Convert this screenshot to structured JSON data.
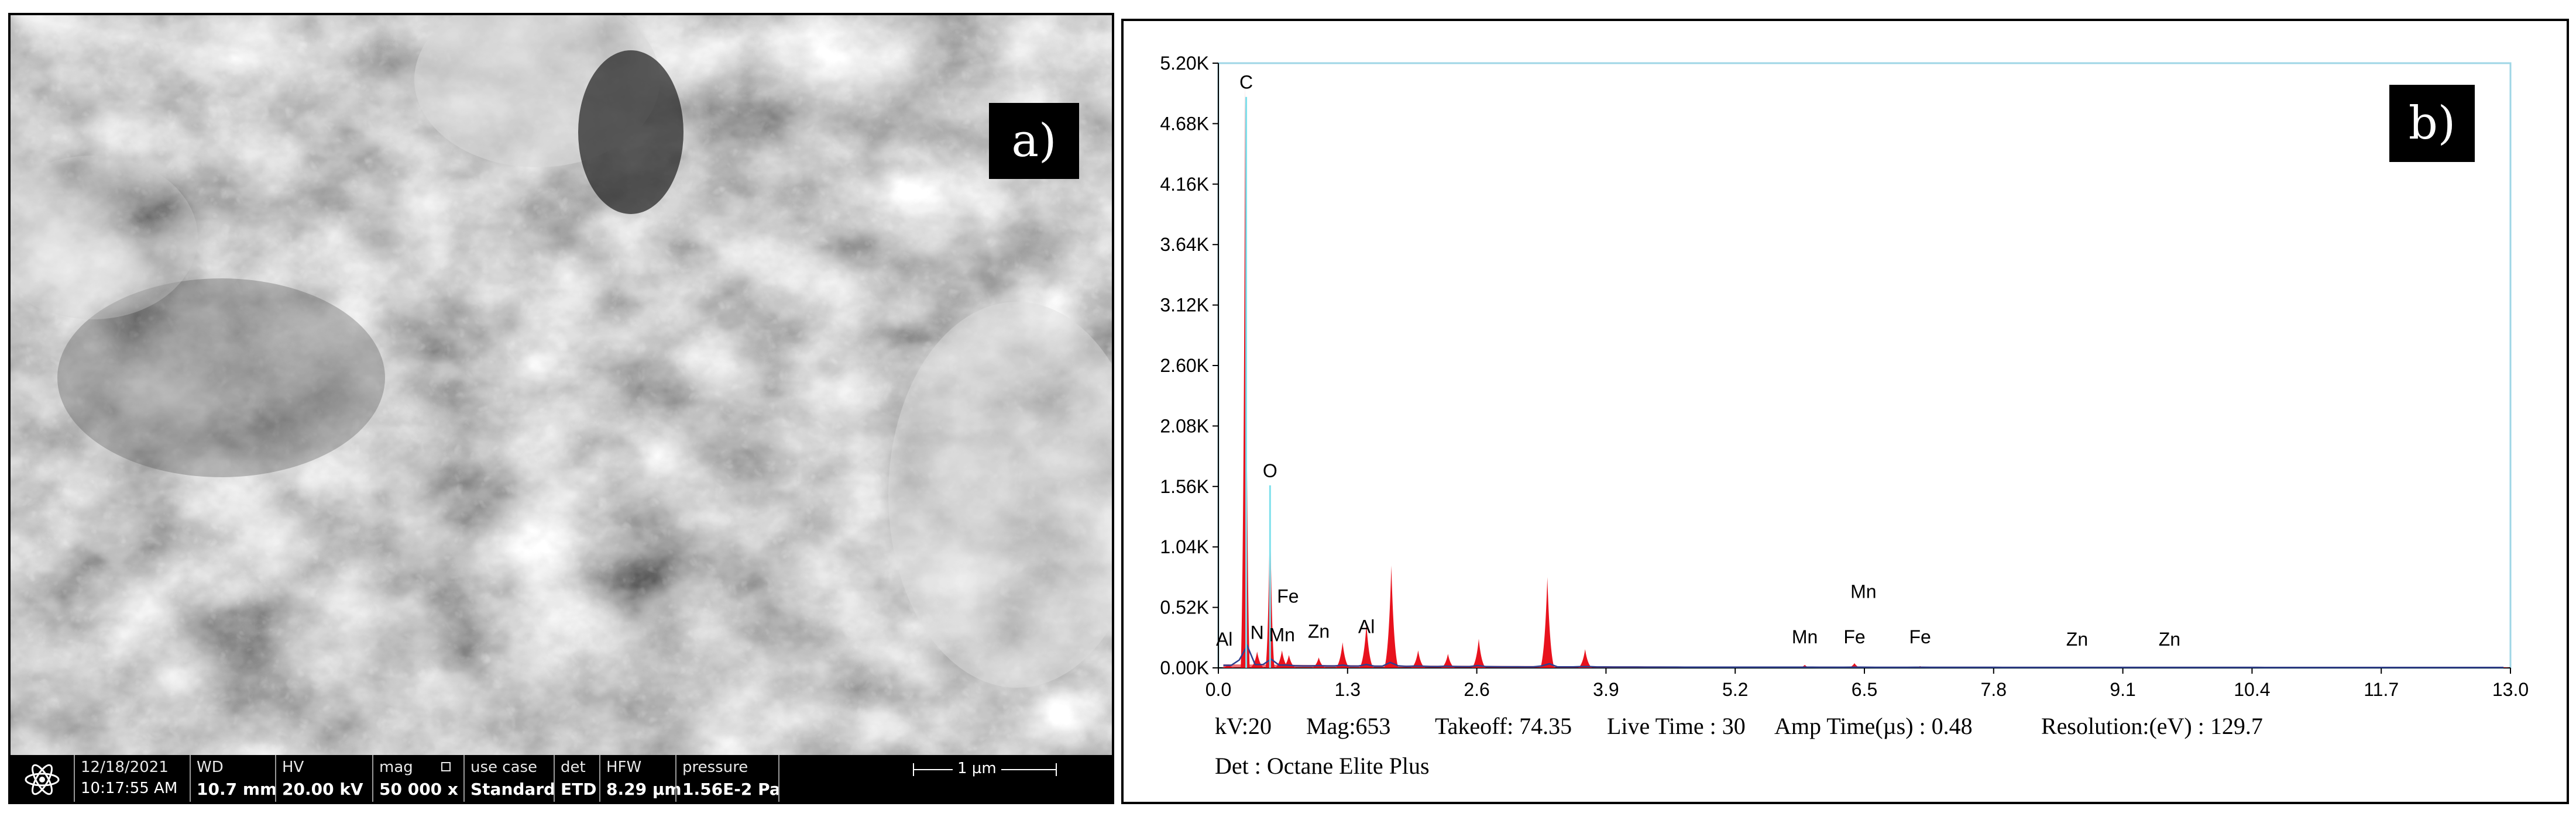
{
  "panels": {
    "a": {
      "label": "a)",
      "databar": {
        "date": "12/18/2021",
        "time": "10:17:55 AM",
        "wd_label": "WD",
        "wd_value": "10.7 mm",
        "hv_label": "HV",
        "hv_value": "20.00 kV",
        "mag_label": "mag",
        "mag_value": "50 000 x",
        "usecase_label": "use case",
        "usecase_value": "Standard",
        "det_label": "det",
        "det_value": "ETD",
        "hfw_label": "HFW",
        "hfw_value": "8.29 µm",
        "pressure_label": "pressure",
        "pressure_value": "1.56E-2 Pa",
        "scalebar": "1 µm"
      }
    },
    "b": {
      "label": "b)",
      "info": {
        "kv": "kV:20",
        "mag": "Mag:653",
        "takeoff": "Takeoff: 74.35",
        "livetime": "Live Time : 30",
        "amptime": "Amp Time(µs) : 0.48",
        "resolution": "Resolution:(eV) : 129.7",
        "detector": "Det : Octane Elite Plus"
      }
    }
  },
  "chart_data": {
    "type": "area",
    "title": "",
    "xlabel": "",
    "ylabel": "",
    "xlim": [
      0.0,
      13.0
    ],
    "ylim": [
      0,
      5200
    ],
    "x_tick_labels": [
      "0.0",
      "1.3",
      "2.6",
      "3.9",
      "5.2",
      "6.5",
      "7.8",
      "9.1",
      "10.4",
      "11.7",
      "13.0"
    ],
    "y_tick_labels": [
      "0.00K",
      "0.52K",
      "1.04K",
      "1.56K",
      "2.08K",
      "2.60K",
      "3.12K",
      "3.64K",
      "4.16K",
      "4.68K",
      "5.20K"
    ],
    "grid": false,
    "legend": "none",
    "colors": {
      "spectrum_fill": "#e8121d",
      "overlay": "#2f3f8f",
      "marker_line": "#7fe0ec",
      "frame": "#9fd6e6"
    },
    "spectrum_peaks": [
      {
        "x": 0.1,
        "y": 30
      },
      {
        "x": 0.27,
        "y": 5000
      },
      {
        "x": 0.39,
        "y": 140
      },
      {
        "x": 0.52,
        "y": 1480
      },
      {
        "x": 0.64,
        "y": 150
      },
      {
        "x": 0.71,
        "y": 110
      },
      {
        "x": 1.01,
        "y": 90
      },
      {
        "x": 1.25,
        "y": 220
      },
      {
        "x": 1.49,
        "y": 380
      },
      {
        "x": 1.74,
        "y": 880
      },
      {
        "x": 2.01,
        "y": 150
      },
      {
        "x": 2.31,
        "y": 120
      },
      {
        "x": 2.62,
        "y": 250
      },
      {
        "x": 3.31,
        "y": 780
      },
      {
        "x": 3.69,
        "y": 160
      },
      {
        "x": 5.9,
        "y": 25
      },
      {
        "x": 6.4,
        "y": 40
      },
      {
        "x": 7.06,
        "y": 15
      }
    ],
    "element_markers": [
      {
        "label": "C",
        "x": 0.28,
        "y": 4980
      },
      {
        "label": "O",
        "x": 0.52,
        "y": 1640
      },
      {
        "label": "N",
        "x": 0.39,
        "y": 250
      },
      {
        "label": "Fe",
        "x": 0.7,
        "y": 560
      },
      {
        "label": "Mn",
        "x": 0.64,
        "y": 230
      },
      {
        "label": "Zn",
        "x": 1.01,
        "y": 260
      },
      {
        "label": "Al",
        "x": 1.49,
        "y": 300
      },
      {
        "label": "Al",
        "x": 0.06,
        "y": 190
      },
      {
        "label": "Mn",
        "x": 5.9,
        "y": 210
      },
      {
        "label": "Fe",
        "x": 6.4,
        "y": 210
      },
      {
        "label": "Mn",
        "x": 6.49,
        "y": 600
      },
      {
        "label": "Fe",
        "x": 7.06,
        "y": 210
      },
      {
        "label": "Zn",
        "x": 8.64,
        "y": 190
      },
      {
        "label": "Zn",
        "x": 9.57,
        "y": 190
      }
    ]
  }
}
